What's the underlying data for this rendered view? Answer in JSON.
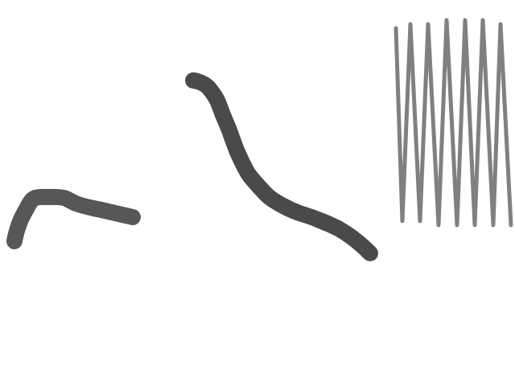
{
  "chart_data": {
    "type": "line",
    "xlim": [
      0,
      640
    ],
    "ylim": [
      0,
      480
    ],
    "tick_labels": false,
    "grid": false,
    "series": [
      {
        "color": "#3a3a3a",
        "line_style": "thick",
        "x": [
          18,
          30,
          50,
          70,
          100,
          130,
          165
        ],
        "values": [
          180,
          215,
          235,
          235,
          225,
          218,
          210
        ]
      },
      {
        "color": "#2a2a2a",
        "line_style": "thick",
        "x": [
          240,
          260,
          280,
          300,
          320,
          350,
          400,
          430,
          460
        ],
        "values": [
          380,
          370,
          330,
          280,
          250,
          225,
          205,
          190,
          165
        ]
      },
      {
        "color": "#4a4a4a",
        "line_style": "thin",
        "x": [
          492,
          500,
          510,
          522,
          532,
          545,
          555,
          568,
          578,
          590,
          600,
          613,
          622,
          635
        ],
        "values": [
          445,
          205,
          450,
          205,
          450,
          200,
          455,
          200,
          455,
          200,
          455,
          200,
          450,
          200
        ]
      }
    ]
  }
}
